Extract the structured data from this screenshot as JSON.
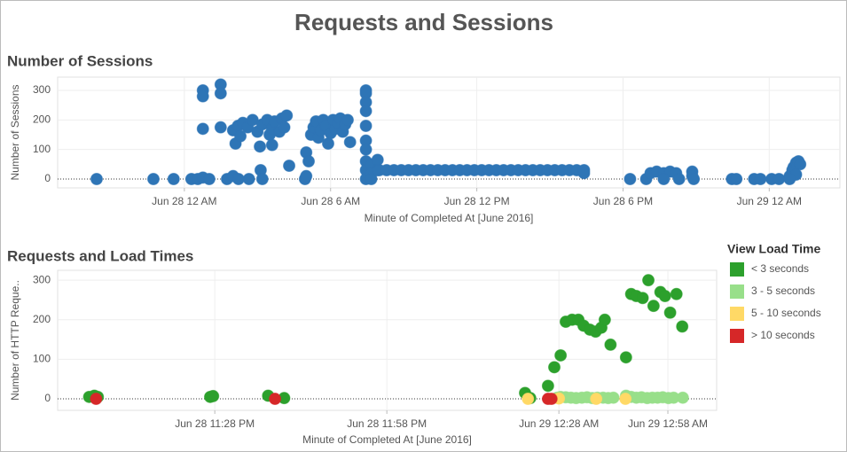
{
  "title": "Requests and Sessions",
  "chart_data": [
    {
      "type": "scatter",
      "title": "Number of Sessions",
      "x_label": "Minute of Completed At [June 2016]",
      "y_label": "Number of Sessions",
      "color": "#2e75b6",
      "xlim": [
        -5.2,
        26.9
      ],
      "xticks": [
        {
          "value": 0,
          "label": "Jun 28 12 AM"
        },
        {
          "value": 6,
          "label": "Jun 28 6 AM"
        },
        {
          "value": 12,
          "label": "Jun 28 12 PM"
        },
        {
          "value": 18,
          "label": "Jun 28 6 PM"
        },
        {
          "value": 24,
          "label": "Jun 29 12 AM"
        }
      ],
      "ylim": [
        -30,
        345
      ],
      "yticks": [
        0,
        100,
        200,
        300
      ],
      "grid": true,
      "x": [
        -3.6,
        -1.27,
        -0.44,
        0.29,
        0.55,
        0.76,
        0.76,
        0.76,
        0.76,
        1.02,
        1.49,
        1.49,
        1.49,
        1.75,
        2.0,
        2.22,
        2.65,
        3.13,
        3.2,
        2.0,
        2.1,
        2.2,
        2.3,
        2.4,
        2.6,
        2.8,
        3.0,
        3.1,
        3.2,
        3.4,
        3.5,
        3.6,
        3.7,
        3.9,
        4.0,
        4.1,
        4.2,
        4.3,
        3.6,
        4.95,
        5.0,
        5.0,
        5.1,
        5.2,
        5.3,
        5.4,
        5.5,
        5.6,
        5.7,
        5.8,
        5.9,
        6.0,
        6.1,
        6.2,
        6.3,
        6.4,
        6.5,
        6.6,
        6.7,
        6.8,
        7.45,
        7.45,
        7.45,
        7.45,
        7.45,
        7.45,
        7.45,
        7.45,
        7.45,
        7.45,
        7.67,
        7.67,
        7.67,
        7.93,
        7.93,
        8.0,
        8.3,
        8.6,
        8.9,
        9.2,
        9.5,
        9.8,
        10.1,
        10.4,
        10.7,
        11.0,
        11.3,
        11.6,
        11.9,
        12.2,
        12.5,
        12.8,
        13.1,
        13.4,
        13.7,
        14.0,
        14.3,
        14.6,
        14.9,
        15.2,
        15.5,
        15.8,
        16.1,
        16.4,
        16.4,
        18.29,
        18.95,
        19.13,
        19.38,
        19.67,
        19.93,
        20.18,
        19.67,
        20.3,
        20.84,
        20.84,
        20.9,
        22.47,
        22.65,
        23.38,
        23.64,
        24.1,
        24.4,
        24.84,
        24.95,
        25.0,
        25.1,
        25.2,
        25.27,
        25.1,
        24.84
      ],
      "values": [
        0,
        0,
        0,
        0,
        0,
        5,
        300,
        280,
        170,
        0,
        320,
        290,
        175,
        0,
        10,
        0,
        0,
        30,
        0,
        165,
        120,
        180,
        145,
        190,
        175,
        200,
        160,
        110,
        185,
        200,
        150,
        170,
        195,
        160,
        205,
        175,
        215,
        45,
        115,
        0,
        10,
        90,
        60,
        150,
        175,
        195,
        140,
        165,
        200,
        180,
        120,
        155,
        200,
        170,
        190,
        205,
        160,
        185,
        200,
        125,
        300,
        290,
        260,
        230,
        180,
        130,
        100,
        60,
        30,
        0,
        50,
        20,
        0,
        65,
        30,
        30,
        30,
        30,
        30,
        30,
        30,
        30,
        30,
        30,
        30,
        30,
        30,
        30,
        30,
        30,
        30,
        30,
        30,
        30,
        30,
        30,
        30,
        30,
        30,
        30,
        30,
        30,
        30,
        30,
        20,
        0,
        0,
        20,
        25,
        20,
        25,
        20,
        0,
        0,
        25,
        10,
        0,
        0,
        0,
        0,
        0,
        0,
        0,
        10,
        30,
        40,
        55,
        60,
        50,
        15,
        0
      ]
    },
    {
      "type": "scatter",
      "title": "Requests and Load Times",
      "x_label": "Minute of Completed At [June 2016]",
      "y_label": "Number of HTTP Reque..",
      "legend_title": "View Load Time",
      "legend": "right",
      "xlim": [
        -27.4,
        87.5
      ],
      "xticks": [
        {
          "value": 0,
          "label": "Jun 28 11:28 PM"
        },
        {
          "value": 30,
          "label": "Jun 28 11:58 PM"
        },
        {
          "value": 60,
          "label": "Jun 29 12:28 AM"
        },
        {
          "value": 79,
          "label": "Jun 29 12:58 AM"
        }
      ],
      "ylim": [
        -29,
        325
      ],
      "yticks": [
        0,
        100,
        200,
        300
      ],
      "grid": true,
      "series": [
        {
          "name": "< 3 seconds",
          "color": "#2ca02c",
          "x": [
            -21.9,
            -21,
            -20.4,
            -0.8,
            -0.3,
            9.3,
            12.1,
            54.1,
            55,
            58.1,
            59.2,
            60.3,
            61.2,
            62.3,
            63.4,
            64.3,
            65.4,
            66.4,
            67.4,
            68,
            69,
            71.7,
            72.6,
            73.5,
            74.6,
            75.6,
            76.5,
            77.7,
            78.5,
            79.4,
            80.5,
            81.5
          ],
          "values": [
            5,
            8,
            5,
            5,
            7,
            8,
            2,
            15,
            2,
            33,
            80,
            110,
            195,
            200,
            200,
            185,
            175,
            170,
            180,
            200,
            137,
            105,
            265,
            260,
            255,
            300,
            235,
            270,
            260,
            218,
            265,
            183
          ]
        },
        {
          "name": "3 - 5 seconds",
          "color": "#98df8a",
          "x": [
            59.7,
            60.3,
            61.2,
            62.1,
            63.0,
            64.0,
            64.9,
            65.8,
            66.7,
            67.7,
            68.6,
            69.5,
            71.7,
            72.6,
            73.5,
            74.4,
            75.4,
            76.3,
            77.2,
            78.1,
            79.1,
            80.0,
            81.6
          ],
          "values": [
            3,
            5,
            4,
            3,
            2,
            3,
            4,
            2,
            3,
            3,
            2,
            3,
            8,
            5,
            3,
            4,
            2,
            3,
            3,
            4,
            2,
            3,
            3
          ]
        },
        {
          "name": "5 - 10 seconds",
          "color": "#ffd966",
          "x": [
            54.6,
            60,
            66.5,
            71.6
          ],
          "values": [
            0,
            1,
            0,
            0
          ]
        },
        {
          "name": "> 10 seconds",
          "color": "#d62728",
          "x": [
            -20.7,
            10.5,
            58.1,
            58.7
          ],
          "values": [
            0,
            0,
            0,
            0
          ]
        }
      ]
    }
  ]
}
